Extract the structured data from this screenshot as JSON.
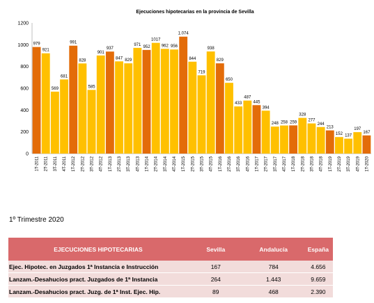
{
  "chart_data": {
    "type": "bar",
    "title": "Ejecuciones hipotecarias en la provincia de Sevilla",
    "xlabel": "",
    "ylabel": "",
    "ylim": [
      0,
      1200
    ],
    "yticks": [
      0,
      200,
      400,
      600,
      800,
      1000,
      1200
    ],
    "grid": false,
    "legend": "none",
    "colors": {
      "first_quarter": "#E36C09",
      "other_quarters": "#FFC000"
    },
    "categories": [
      "1T-2011",
      "2T-2011",
      "3T-2011",
      "4T-2011",
      "1T-2012",
      "2T-2012",
      "3T-2012",
      "4T-2012",
      "1T-2013",
      "2T-2013",
      "3T-2013",
      "4T-2013",
      "1T-2014",
      "2T-2014",
      "3T-2014",
      "4T-2014",
      "1T-2015",
      "2T-2015",
      "3T-2015",
      "4T-2015",
      "1T-2016",
      "2T-2016",
      "3T-2016",
      "4T-2016",
      "1T-2017",
      "2T-2017",
      "3T-2017",
      "4T-2017",
      "1T-2018",
      "2T-2018",
      "3T-2018",
      "4T-2018",
      "1T-2019",
      "2T-2019",
      "3T-2019",
      "4T-2019",
      "1T-2020"
    ],
    "values": [
      979,
      921,
      569,
      681,
      991,
      828,
      585,
      901,
      937,
      847,
      829,
      971,
      952,
      1017,
      962,
      956,
      1074,
      844,
      719,
      938,
      829,
      650,
      433,
      487,
      445,
      394,
      248,
      258,
      259,
      328,
      277,
      244,
      213,
      152,
      137,
      197,
      167
    ],
    "value_labels": [
      "979",
      "921",
      "569",
      "681",
      "991",
      "828",
      "585",
      "901",
      "937",
      "847",
      "829",
      "971",
      "952",
      "1017",
      "962",
      "956",
      "1.074",
      "844",
      "719",
      "938",
      "829",
      "650",
      "433",
      "487",
      "445",
      "394",
      "248",
      "258",
      "259",
      "328",
      "277",
      "244",
      "213",
      "152",
      "137",
      "197",
      "167"
    ]
  },
  "section_title": "1º Trimestre 2020",
  "table": {
    "header_color": "#D9696B",
    "row_color": "#F2DCDB",
    "headers": [
      "EJECUCIONES HIPOTECARIAS",
      "Sevilla",
      "Andalucía",
      "España"
    ],
    "rows": [
      {
        "label": "Ejec. Hipotec. en Juzgados 1ª Instancia e Instrucción",
        "sevilla": "167",
        "andalucia": "784",
        "espana": "4.656"
      },
      {
        "label": "Lanzam.-Desahucios pract. Juzgados de 1ª Instancia",
        "sevilla": "264",
        "andalucia": "1.443",
        "espana": "9.659"
      },
      {
        "label": "Lanzam.-Desahucios pract. Juzg. de 1ª Inst. Ejec. Hip.",
        "sevilla": "89",
        "andalucia": "468",
        "espana": "2.390"
      }
    ]
  }
}
